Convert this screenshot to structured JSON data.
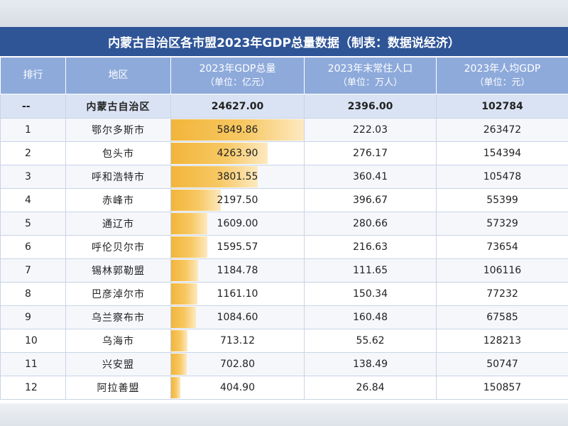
{
  "title": "内蒙古自治区各市盟2023年GDP总量数据（制表：数据说经济）",
  "headers": {
    "rank": "排行",
    "region": "地区",
    "gdp": "2023年GDP总量",
    "gdp_unit": "（单位：亿元）",
    "pop": "2023年末常住人口",
    "pop_unit": "（单位：万人）",
    "per": "2023年人均GDP",
    "per_unit": "（单位：元）"
  },
  "total": {
    "rank": "--",
    "region": "内蒙古自治区",
    "gdp": "24627.00",
    "pop": "2396.00",
    "per": "102784"
  },
  "rows": [
    {
      "rank": "1",
      "region": "鄂尔多斯市",
      "gdp": "5849.86",
      "gdp_value": 5849.86,
      "pop": "222.03",
      "per": "263472"
    },
    {
      "rank": "2",
      "region": "包头市",
      "gdp": "4263.90",
      "gdp_value": 4263.9,
      "pop": "276.17",
      "per": "154394"
    },
    {
      "rank": "3",
      "region": "呼和浩特市",
      "gdp": "3801.55",
      "gdp_value": 3801.55,
      "pop": "360.41",
      "per": "105478"
    },
    {
      "rank": "4",
      "region": "赤峰市",
      "gdp": "2197.50",
      "gdp_value": 2197.5,
      "pop": "396.67",
      "per": "55399"
    },
    {
      "rank": "5",
      "region": "通辽市",
      "gdp": "1609.00",
      "gdp_value": 1609.0,
      "pop": "280.66",
      "per": "57329"
    },
    {
      "rank": "6",
      "region": "呼伦贝尔市",
      "gdp": "1595.57",
      "gdp_value": 1595.57,
      "pop": "216.63",
      "per": "73654"
    },
    {
      "rank": "7",
      "region": "锡林郭勒盟",
      "gdp": "1184.78",
      "gdp_value": 1184.78,
      "pop": "111.65",
      "per": "106116"
    },
    {
      "rank": "8",
      "region": "巴彦淖尔市",
      "gdp": "1161.10",
      "gdp_value": 1161.1,
      "pop": "150.34",
      "per": "77232"
    },
    {
      "rank": "9",
      "region": "乌兰察布市",
      "gdp": "1084.60",
      "gdp_value": 1084.6,
      "pop": "160.48",
      "per": "67585"
    },
    {
      "rank": "10",
      "region": "乌海市",
      "gdp": "713.12",
      "gdp_value": 713.12,
      "pop": "55.62",
      "per": "128213"
    },
    {
      "rank": "11",
      "region": "兴安盟",
      "gdp": "702.80",
      "gdp_value": 702.8,
      "pop": "138.49",
      "per": "50747"
    },
    {
      "rank": "12",
      "region": "阿拉善盟",
      "gdp": "404.90",
      "gdp_value": 404.9,
      "pop": "26.84",
      "per": "150857"
    }
  ],
  "colors": {
    "title_bg": "#2f5597",
    "header_bg": "#8eaadb",
    "total_bg": "#dae3f3",
    "bar_start": "#f2b53a",
    "bar_end": "#fde9c0"
  }
}
